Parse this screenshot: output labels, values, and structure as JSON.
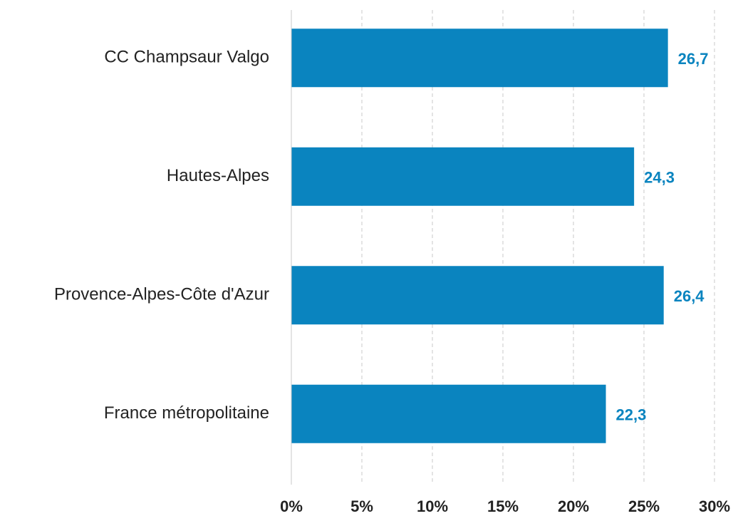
{
  "chart_data": {
    "type": "barh",
    "categories": [
      "CC Champsaur Valgo",
      "Hautes-Alpes",
      "Provence-Alpes-Côte d'Azur",
      "France métropolitaine"
    ],
    "values": [
      26.7,
      24.3,
      26.4,
      22.3
    ],
    "value_labels": [
      "26,7",
      "24,3",
      "26,4",
      "22,3"
    ],
    "color": "#0a84bf",
    "xlim": [
      0,
      30
    ],
    "xticks": [
      {
        "value": 0,
        "label": "0%"
      },
      {
        "value": 5,
        "label": "5%"
      },
      {
        "value": 10,
        "label": "10%"
      },
      {
        "value": 15,
        "label": "15%"
      },
      {
        "value": 20,
        "label": "20%"
      },
      {
        "value": 25,
        "label": "25%"
      },
      {
        "value": 30,
        "label": "30%"
      }
    ],
    "grid": true
  }
}
